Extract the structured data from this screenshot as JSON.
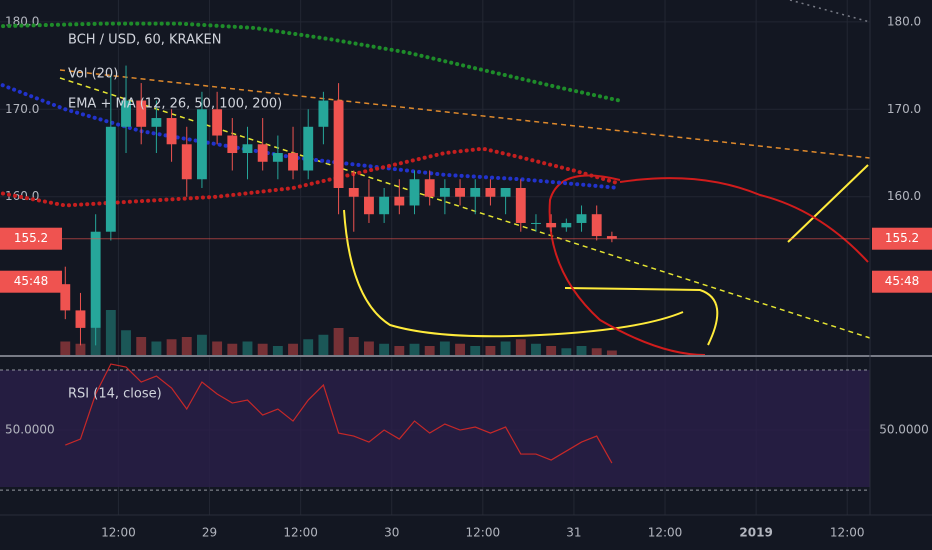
{
  "chart_data": [
    {
      "type": "candlestick",
      "title": "BCH / USD, 60, KRAKEN",
      "volume_label": "Vol (20)",
      "indicator_label": "EMA + MA (12, 26, 50, 100, 200)",
      "x": [
        5,
        7,
        9,
        11,
        13,
        15,
        17,
        19,
        21,
        23,
        25,
        27,
        29,
        31,
        33,
        35,
        37,
        39,
        41,
        43,
        45,
        47,
        49,
        51,
        53,
        55,
        57,
        59,
        61,
        63,
        65,
        67,
        69,
        71,
        73,
        75,
        77
      ],
      "open": [
        150,
        147,
        145,
        156,
        168,
        171,
        168,
        169,
        166,
        162,
        170,
        167,
        165,
        166,
        164,
        165,
        163,
        168,
        171,
        161,
        160,
        158,
        160,
        159,
        162,
        160,
        161,
        160,
        161,
        160,
        161,
        157,
        157,
        156.5,
        157,
        158,
        155.5
      ],
      "high": [
        152,
        149,
        158,
        174,
        175,
        173,
        171,
        170,
        168,
        172,
        172,
        169,
        168,
        169,
        167,
        168,
        170,
        172,
        173,
        163,
        162,
        161,
        162,
        163,
        163,
        162,
        162,
        162,
        162,
        161,
        162,
        158,
        158,
        157.5,
        159,
        159,
        156
      ],
      "low": [
        146,
        143,
        143,
        155,
        165,
        166,
        165,
        164,
        160,
        161,
        166,
        163,
        162,
        163,
        162,
        162,
        162,
        166,
        158,
        156,
        157,
        157,
        158,
        158,
        159,
        158,
        159,
        158,
        159,
        158,
        156,
        156,
        156,
        156,
        156,
        155,
        154.8
      ],
      "close": [
        147,
        145,
        156,
        168,
        171,
        168,
        169,
        166,
        162,
        170,
        167,
        165,
        166,
        164,
        165,
        163,
        168,
        171,
        161,
        160,
        158,
        160,
        159,
        162,
        160,
        161,
        160,
        161,
        160,
        161,
        157,
        157,
        156.5,
        157,
        158,
        155.5,
        155.2
      ],
      "volume": [
        30,
        25,
        60,
        100,
        55,
        40,
        30,
        35,
        40,
        45,
        30,
        25,
        30,
        25,
        20,
        25,
        35,
        45,
        60,
        40,
        30,
        25,
        20,
        25,
        20,
        30,
        25,
        20,
        20,
        30,
        35,
        25,
        20,
        15,
        20,
        15,
        10
      ],
      "up_color": "#26a69a",
      "down_color": "#ef5350",
      "moving_averages": [
        {
          "color": "#1e8c2a",
          "x": [
            -4,
            10,
            20,
            30,
            40,
            50,
            60,
            70,
            78
          ],
          "values": [
            179.5,
            179.8,
            179.8,
            179.3,
            178,
            176.5,
            174.5,
            172.5,
            171
          ]
        },
        {
          "color": "#2233cc",
          "x": [
            -4,
            5,
            15,
            25,
            35,
            45,
            55,
            65,
            78
          ],
          "values": [
            173,
            170,
            167.5,
            166,
            164.5,
            163.5,
            162.5,
            162,
            161
          ]
        },
        {
          "color": "#c41f1f",
          "x": [
            -4,
            5,
            15,
            25,
            35,
            45,
            55,
            60,
            65,
            72,
            78
          ],
          "values": [
            160.5,
            159,
            159.5,
            160,
            161,
            163,
            165,
            165.5,
            164.5,
            163,
            161.5
          ]
        }
      ],
      "last_price": 155.2,
      "countdown": "45:48",
      "xlim": [
        -3.6,
        111
      ],
      "ylim": [
        141.9,
        182.5
      ],
      "yticks": [
        {
          "value": 160,
          "label": "160.0"
        },
        {
          "value": 170,
          "label": "170.0"
        },
        {
          "value": 180,
          "label": "180.0"
        }
      ],
      "xticks": [
        {
          "value": 12,
          "label": "12:00"
        },
        {
          "value": 24,
          "label": "29"
        },
        {
          "value": 36,
          "label": "12:00"
        },
        {
          "value": 48,
          "label": "30"
        },
        {
          "value": 60,
          "label": "12:00"
        },
        {
          "value": 72,
          "label": "31"
        },
        {
          "value": 84,
          "label": "12:00"
        },
        {
          "value": 96,
          "label": "2019"
        },
        {
          "value": 108,
          "label": "12:00"
        }
      ]
    },
    {
      "type": "line",
      "title": "RSI (14, close)",
      "color": "#c62828",
      "x": [
        5,
        7,
        9,
        11,
        13,
        15,
        17,
        19,
        21,
        23,
        25,
        27,
        29,
        31,
        33,
        35,
        37,
        39,
        41,
        43,
        45,
        47,
        49,
        51,
        53,
        55,
        57,
        59,
        61,
        63,
        65,
        67,
        69,
        71,
        73,
        75,
        77
      ],
      "values": [
        45,
        47,
        62,
        72,
        71,
        66,
        68,
        64,
        57,
        66,
        62,
        59,
        60,
        55,
        57,
        53,
        60,
        65,
        49,
        48,
        46,
        50,
        47,
        53,
        49,
        52,
        50,
        51,
        49,
        51,
        42,
        42,
        40,
        43,
        46,
        48,
        39
      ],
      "xlim": [
        -3.6,
        111
      ],
      "ylim": [
        21.7,
        74
      ],
      "bands": [
        30,
        70
      ],
      "yticks": [
        {
          "value": 50,
          "label": "50.0000"
        }
      ]
    }
  ]
}
